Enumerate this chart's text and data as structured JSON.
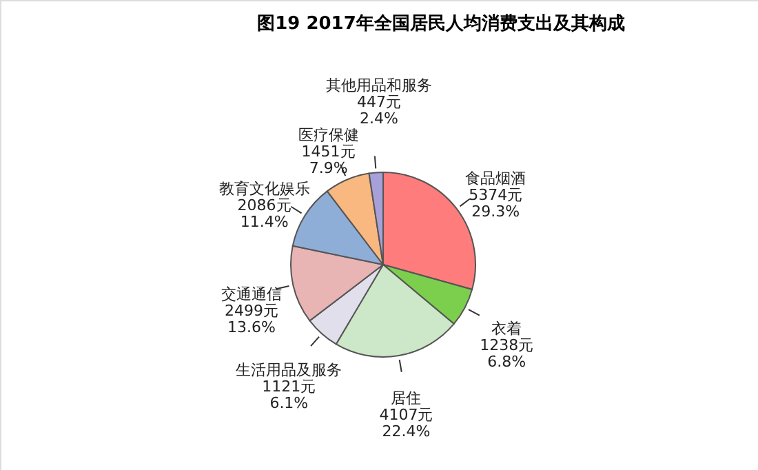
{
  "chart_data": {
    "type": "pie",
    "title": "图19    2017年全国居民人均消费支出及其构成",
    "categories": [
      "食品烟酒",
      "衣着",
      "居住",
      "生活用品及服务",
      "交通通信",
      "教育文化娱乐",
      "医疗保健",
      "其他用品和服务"
    ],
    "values": [
      5374,
      1238,
      4107,
      1121,
      2499,
      2086,
      1451,
      447
    ],
    "value_labels": [
      "5374元\n29.3%",
      "1238元\n6.8%",
      "4107元\n22.4%",
      "1121元\n6.1%",
      "2499元\n13.6%",
      "2086元\n11.4%",
      "1451元\n7.9%",
      "447元\n2.4%"
    ],
    "colors": [
      "#ff7c7c",
      "#7ccf4c",
      "#cde8c8",
      "#e2dfec",
      "#e8b4b4",
      "#8eaed8",
      "#f8b880",
      "#a8a0d8"
    ],
    "legend": false
  }
}
